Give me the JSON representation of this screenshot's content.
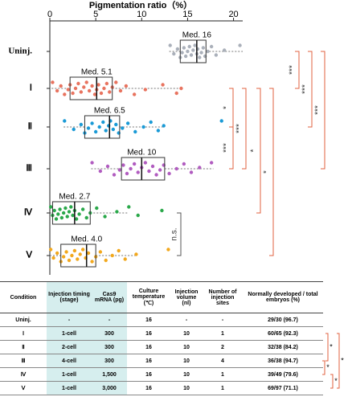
{
  "chart_data": {
    "type": "box",
    "title": "Pigmentation ratio（%）",
    "categories": [
      "Uninj.",
      "Ⅰ",
      "Ⅱ",
      "Ⅲ",
      "Ⅳ",
      "Ⅴ"
    ],
    "xlim": [
      0,
      21
    ],
    "xticks": [
      0,
      5,
      10,
      15,
      20
    ],
    "boxes": [
      {
        "color": "#aab0ba",
        "min": 13,
        "q1": 14.2,
        "median": 16,
        "q3": 17,
        "max": 21,
        "median_label": "Med. 16",
        "points": [
          13.1,
          13.5,
          13.9,
          14.2,
          14.4,
          14.6,
          14.8,
          15.0,
          15.2,
          15.4,
          15.6,
          15.8,
          16.0,
          16.1,
          16.3,
          16.5,
          16.7,
          16.9,
          17.2,
          17.6,
          18.1,
          19.0,
          20.7
        ]
      },
      {
        "color": "#e8735f",
        "min": 0.2,
        "q1": 2.2,
        "median": 5.1,
        "q3": 6.8,
        "max": 14.5,
        "median_label": "Med. 5.1",
        "points": [
          0.3,
          0.8,
          1.2,
          1.6,
          2.0,
          2.2,
          2.5,
          2.8,
          3.1,
          3.4,
          3.7,
          4.0,
          4.3,
          4.6,
          4.9,
          5.1,
          5.3,
          5.6,
          5.9,
          6.2,
          6.5,
          6.8,
          7.2,
          7.7,
          8.3,
          9.2,
          10.4,
          12.3,
          13.8,
          14.3
        ]
      },
      {
        "color": "#1a9ad6",
        "min": 1.5,
        "q1": 3.8,
        "median": 6.5,
        "q3": 7.6,
        "max": 12.5,
        "median_label": "Med. 6.5",
        "points": [
          1.6,
          2.6,
          3.4,
          3.8,
          4.2,
          4.6,
          5.0,
          5.4,
          5.8,
          6.1,
          6.4,
          6.6,
          6.9,
          7.2,
          7.5,
          7.9,
          8.5,
          9.3,
          10.2,
          11.0,
          11.8,
          12.4,
          18.7
        ]
      },
      {
        "color": "#b15cc0",
        "min": 4.5,
        "q1": 7.8,
        "median": 10,
        "q3": 12.5,
        "max": 17.8,
        "median_label": "Med. 10",
        "points": [
          4.6,
          5.5,
          6.3,
          7.0,
          7.6,
          8.0,
          8.4,
          8.8,
          9.2,
          9.6,
          10.0,
          10.4,
          10.8,
          11.2,
          11.6,
          12.0,
          12.4,
          13.0,
          13.8,
          14.6,
          15.4,
          16.3,
          17.6
        ]
      },
      {
        "color": "#2aa84a",
        "min": 0,
        "q1": 0.3,
        "median": 2.7,
        "q3": 4.4,
        "max": 8.6,
        "median_label": "Med. 2.7",
        "points": [
          0.1,
          0.3,
          0.5,
          0.7,
          0.9,
          1.1,
          1.3,
          1.5,
          1.7,
          1.9,
          2.1,
          2.3,
          2.5,
          2.7,
          2.9,
          3.2,
          3.6,
          4.0,
          4.4,
          5.1,
          6.0,
          7.3,
          8.6,
          9.6,
          12.2
        ]
      },
      {
        "color": "#f2a81d",
        "min": 0,
        "q1": 1.2,
        "median": 4.0,
        "q3": 5,
        "max": 9.5,
        "median_label": "Med. 4.0",
        "points": [
          0.1,
          0.4,
          0.8,
          1.2,
          1.5,
          1.8,
          2.1,
          2.4,
          2.7,
          3.0,
          3.3,
          3.6,
          3.9,
          4.2,
          4.6,
          5.0,
          5.5,
          6.1,
          6.8,
          7.5,
          8.2,
          9.4,
          12.9
        ]
      }
    ],
    "significance": [
      "***",
      "***",
      "***",
      "*",
      "***",
      "***",
      "*",
      "*",
      "n.s."
    ]
  },
  "table": {
    "header": [
      "Condition",
      "Injection timing (stage)",
      "Cas9 mRNA (pg)",
      "Culture temperature (℃)",
      "Injection volume (nl)",
      "Number of injection sites",
      "Normally developed / total embryos (%)"
    ],
    "rows": [
      [
        "Uninj.",
        "-",
        "-",
        "16",
        "-",
        "-",
        "29/30 (96.7)"
      ],
      [
        "Ⅰ",
        "1-cell",
        "300",
        "16",
        "10",
        "1",
        "60/65 (92.3)"
      ],
      [
        "Ⅱ",
        "2-cell",
        "300",
        "16",
        "10",
        "2",
        "32/38 (84.2)"
      ],
      [
        "Ⅲ",
        "4-cell",
        "300",
        "16",
        "10",
        "4",
        "36/38 (94.7)"
      ],
      [
        "Ⅳ",
        "1-cell",
        "1,500",
        "16",
        "10",
        "1",
        "39/49 (79.6)"
      ],
      [
        "Ⅴ",
        "1-cell",
        "3,000",
        "16",
        "10",
        "1",
        "69/97 (71.1)"
      ]
    ],
    "significance": [
      "*",
      "*",
      "*",
      "*"
    ]
  }
}
